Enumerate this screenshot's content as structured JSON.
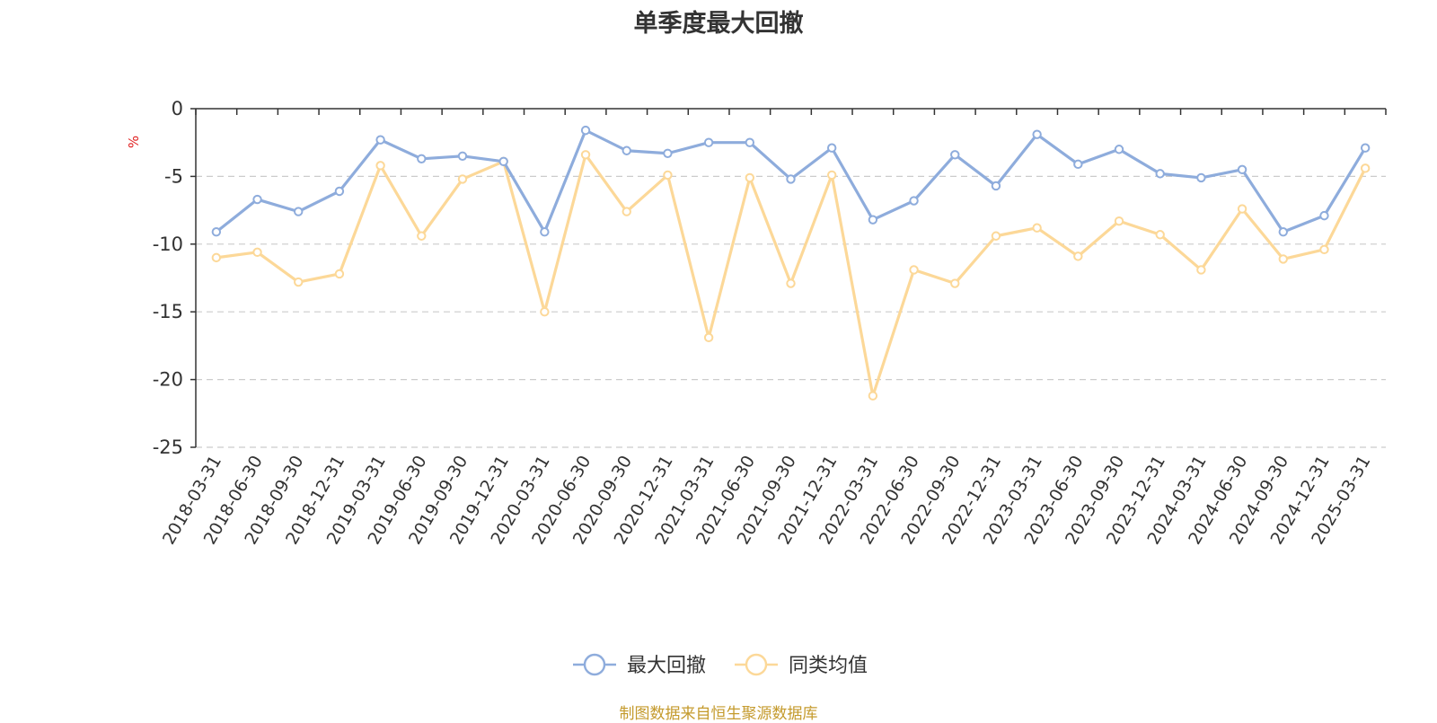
{
  "chart_data": {
    "type": "line",
    "title": "单季度最大回撤",
    "ylabel": "%",
    "ylim": [
      -25,
      0
    ],
    "yticks": [
      0,
      -5,
      -10,
      -15,
      -20,
      -25
    ],
    "grid": true,
    "legend_position": "bottom-center",
    "categories": [
      "2018-03-31",
      "2018-06-30",
      "2018-09-30",
      "2018-12-31",
      "2019-03-31",
      "2019-06-30",
      "2019-09-30",
      "2019-12-31",
      "2020-03-31",
      "2020-06-30",
      "2020-09-30",
      "2020-12-31",
      "2021-03-31",
      "2021-06-30",
      "2021-09-30",
      "2021-12-31",
      "2022-03-31",
      "2022-06-30",
      "2022-09-30",
      "2022-12-31",
      "2023-03-31",
      "2023-06-30",
      "2023-09-30",
      "2023-12-31",
      "2024-03-31",
      "2024-06-30",
      "2024-09-30",
      "2024-12-31",
      "2025-03-31"
    ],
    "series": [
      {
        "name": "最大回撤",
        "color": "#8eacdc",
        "values": [
          -9.1,
          -6.7,
          -7.6,
          -6.1,
          -2.3,
          -3.7,
          -3.5,
          -3.9,
          -9.1,
          -1.6,
          -3.1,
          -3.3,
          -2.5,
          -2.5,
          -5.2,
          -2.9,
          -8.2,
          -6.8,
          -3.4,
          -5.7,
          -1.9,
          -4.1,
          -3.0,
          -4.8,
          -5.1,
          -4.5,
          -9.1,
          -7.9,
          -2.9
        ]
      },
      {
        "name": "同类均值",
        "color": "#fcd898",
        "values": [
          -11.0,
          -10.6,
          -12.8,
          -12.2,
          -4.2,
          -9.4,
          -5.2,
          -3.9,
          -15.0,
          -3.4,
          -7.6,
          -4.9,
          -16.9,
          -5.1,
          -12.9,
          -4.9,
          -21.2,
          -11.9,
          -12.9,
          -9.4,
          -8.8,
          -10.9,
          -8.3,
          -9.3,
          -11.9,
          -7.4,
          -11.1,
          -10.4,
          -4.4
        ]
      }
    ]
  },
  "source_note": "制图数据来自恒生聚源数据库",
  "colors": {
    "unit_label": "#e02020",
    "source": "#c49a2c",
    "grid": "#cccccc",
    "axis": "#333333"
  }
}
